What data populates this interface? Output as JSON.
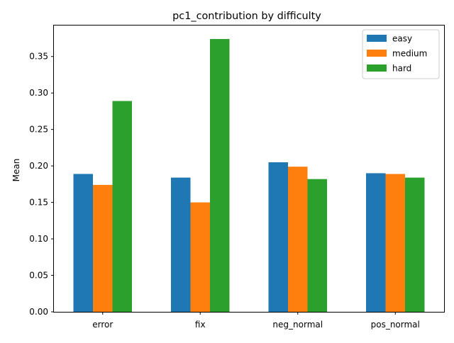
{
  "chart_data": {
    "type": "bar",
    "title": "pc1_contribution by difficulty",
    "xlabel": "",
    "ylabel": "Mean",
    "categories": [
      "error",
      "fix",
      "neg_normal",
      "pos_normal"
    ],
    "series": [
      {
        "name": "easy",
        "values": [
          0.189,
          0.184,
          0.205,
          0.19
        ],
        "color": "#1f77b4"
      },
      {
        "name": "medium",
        "values": [
          0.174,
          0.15,
          0.199,
          0.189
        ],
        "color": "#ff7f0e"
      },
      {
        "name": "hard",
        "values": [
          0.289,
          0.374,
          0.182,
          0.184
        ],
        "color": "#2ca02c"
      }
    ],
    "ylim": [
      0,
      0.3925
    ],
    "yticks": [
      "0.00",
      "0.05",
      "0.10",
      "0.15",
      "0.20",
      "0.25",
      "0.30",
      "0.35"
    ],
    "grid": false,
    "legend_position": "top-right"
  }
}
